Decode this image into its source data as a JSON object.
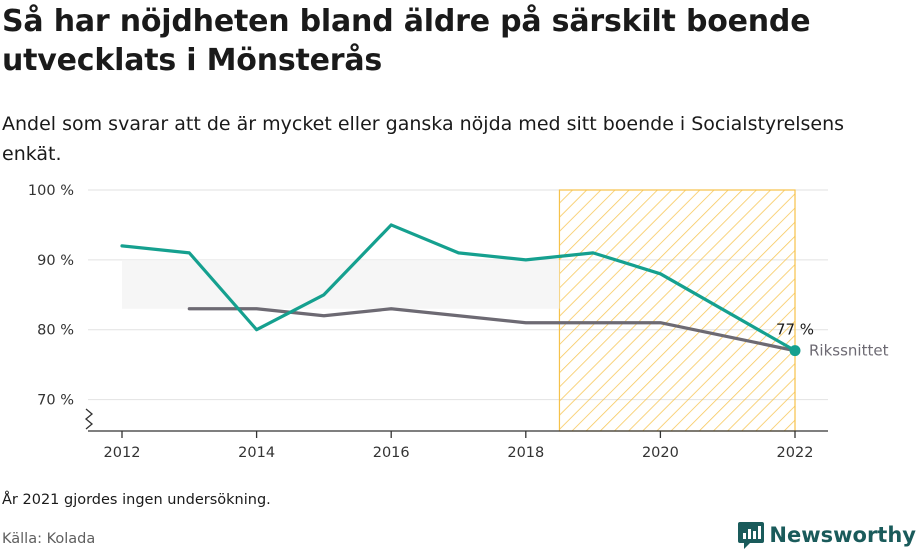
{
  "header": {
    "title": "Så har nöjdheten bland äldre på särskilt boende utvecklats i Mönsterås",
    "subtitle": "Andel som svarar att de är mycket eller ganska nöjda med sitt boende i Socialstyrelsens enkät."
  },
  "footer": {
    "note": "År 2021 gjordes ingen undersökning.",
    "source": "Källa: Kolada",
    "brand": "Newsworthy"
  },
  "colors": {
    "local": "#15a08f",
    "national": "#6d6a73",
    "band": "#f4f4f4",
    "hatch": "#f6c24a",
    "grid": "#e2e2e2",
    "brand": "#1a5b5b"
  },
  "chart_data": {
    "type": "line",
    "x": [
      2012,
      2013,
      2014,
      2015,
      2016,
      2017,
      2018,
      2019,
      2020,
      2022
    ],
    "series": [
      {
        "values": [
          92,
          91,
          80,
          85,
          95,
          91,
          90,
          91,
          88,
          77
        ]
      },
      {
        "name": "Rikssnittet",
        "values": [
          null,
          83,
          83,
          82,
          83,
          82,
          81,
          81,
          81,
          77
        ]
      }
    ],
    "yticks": [
      "100 %",
      "90 %",
      "80 %",
      "70 %"
    ],
    "ytick_values": [
      100,
      90,
      80,
      70
    ],
    "xticks": [
      "2012",
      "2014",
      "2016",
      "2018",
      "2020",
      "2022"
    ],
    "xtick_values": [
      2012,
      2014,
      2016,
      2018,
      2020,
      2022
    ],
    "xlim": [
      2011.5,
      2022.5
    ],
    "ylim": [
      65.5,
      100
    ],
    "y_axis_broken": true,
    "highlight_range": [
      2018.5,
      2022
    ],
    "band": {
      "x": [
        2012,
        2018.5
      ],
      "y": [
        83,
        90
      ]
    },
    "end_label": "77 %",
    "series_label": "Rikssnittet",
    "grid": true
  }
}
